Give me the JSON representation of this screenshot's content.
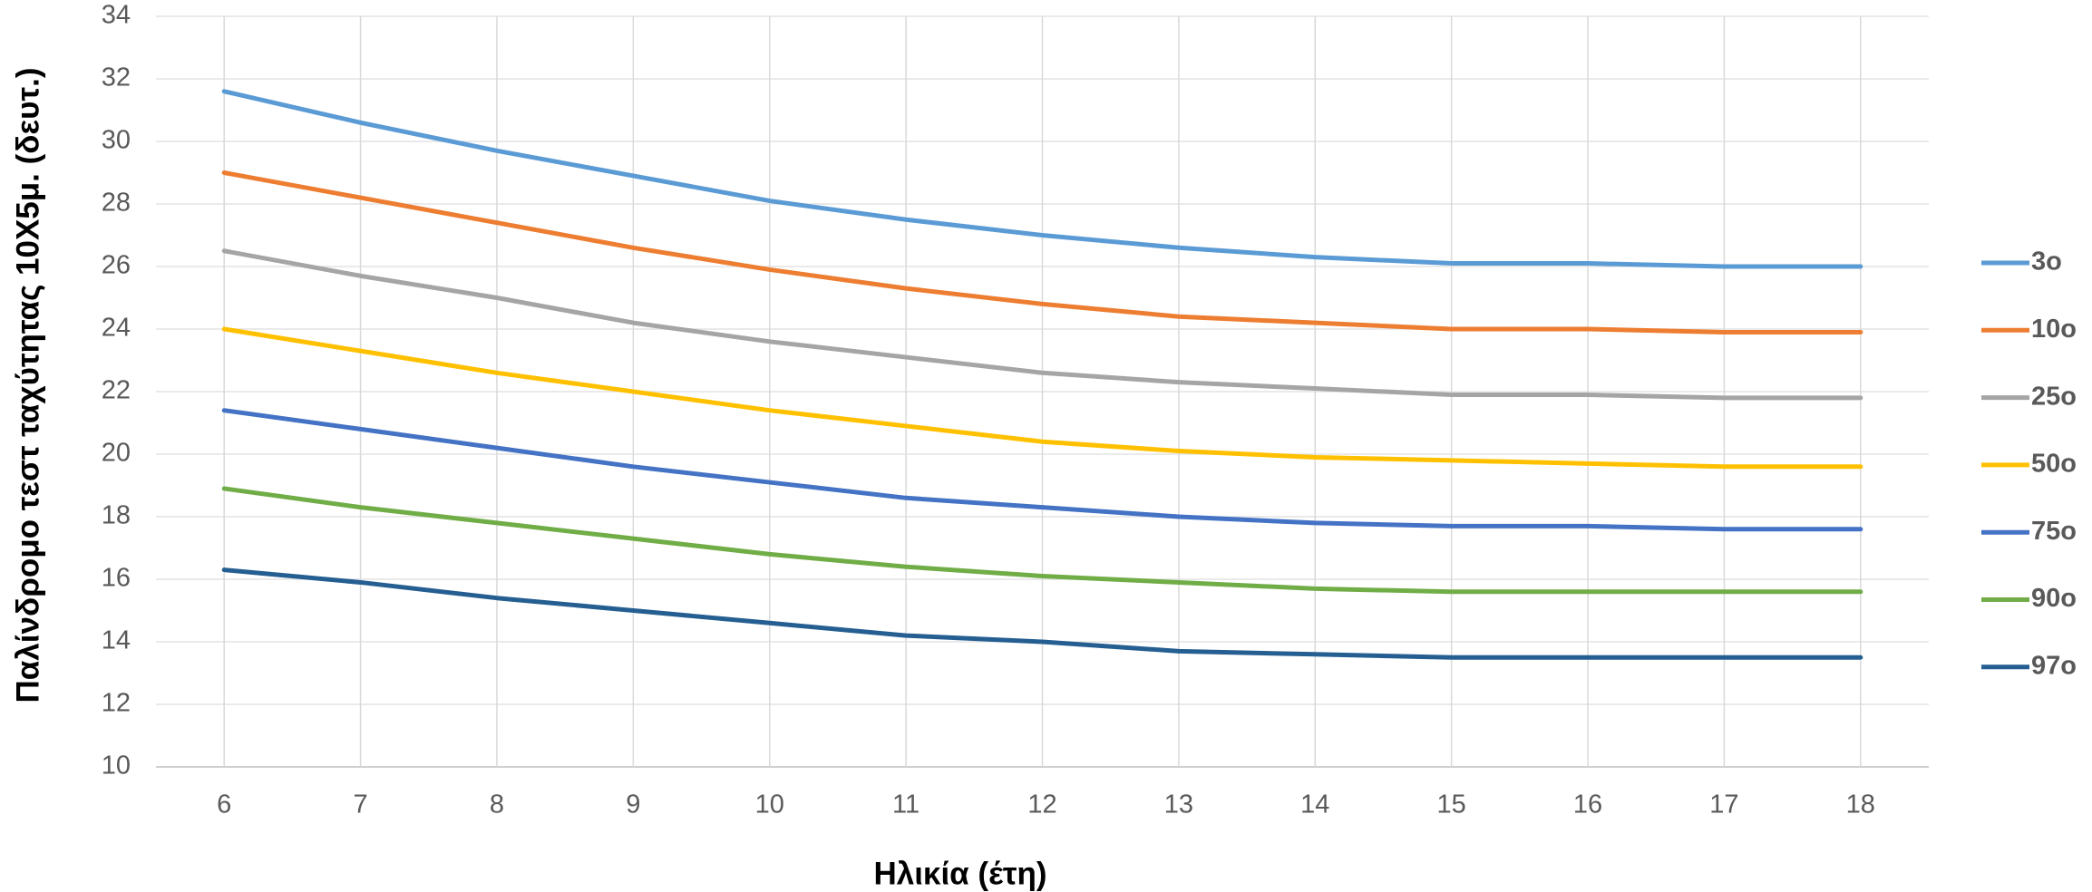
{
  "chart_data": {
    "type": "line",
    "x_label": "Ηλικία (έτη)",
    "y_label": "Παλίνδρομο τεστ ταχύτητας 10X5μ. (δευτ.)",
    "x": [
      6,
      7,
      8,
      9,
      10,
      11,
      12,
      13,
      14,
      15,
      16,
      17,
      18
    ],
    "xlim": [
      5.5,
      18.5
    ],
    "xticks": [
      6,
      7,
      8,
      9,
      10,
      11,
      12,
      13,
      14,
      15,
      16,
      17,
      18
    ],
    "ylim": [
      10,
      34
    ],
    "yticks": [
      10,
      12,
      14,
      16,
      18,
      20,
      22,
      24,
      26,
      28,
      30,
      32,
      34
    ],
    "grid": true,
    "legend": "right",
    "series": [
      {
        "name": "3o",
        "color": "#5b9bd5",
        "values": [
          31.6,
          30.6,
          29.7,
          28.9,
          28.1,
          27.5,
          27.0,
          26.6,
          26.3,
          26.1,
          26.1,
          26.0,
          26.0
        ]
      },
      {
        "name": "10o",
        "color": "#ed7d31",
        "values": [
          29.0,
          28.2,
          27.4,
          26.6,
          25.9,
          25.3,
          24.8,
          24.4,
          24.2,
          24.0,
          24.0,
          23.9,
          23.9
        ]
      },
      {
        "name": "25o",
        "color": "#a5a5a5",
        "values": [
          26.5,
          25.7,
          25.0,
          24.2,
          23.6,
          23.1,
          22.6,
          22.3,
          22.1,
          21.9,
          21.9,
          21.8,
          21.8
        ]
      },
      {
        "name": "50o",
        "color": "#ffc000",
        "values": [
          24.0,
          23.3,
          22.6,
          22.0,
          21.4,
          20.9,
          20.4,
          20.1,
          19.9,
          19.8,
          19.7,
          19.6,
          19.6
        ]
      },
      {
        "name": "75o",
        "color": "#4472c4",
        "values": [
          21.4,
          20.8,
          20.2,
          19.6,
          19.1,
          18.6,
          18.3,
          18.0,
          17.8,
          17.7,
          17.7,
          17.6,
          17.6
        ]
      },
      {
        "name": "90o",
        "color": "#70ad47",
        "values": [
          18.9,
          18.3,
          17.8,
          17.3,
          16.8,
          16.4,
          16.1,
          15.9,
          15.7,
          15.6,
          15.6,
          15.6,
          15.6
        ]
      },
      {
        "name": "97o",
        "color": "#255e91",
        "values": [
          16.3,
          15.9,
          15.4,
          15.0,
          14.6,
          14.2,
          14.0,
          13.7,
          13.6,
          13.5,
          13.5,
          13.5,
          13.5
        ]
      }
    ]
  }
}
